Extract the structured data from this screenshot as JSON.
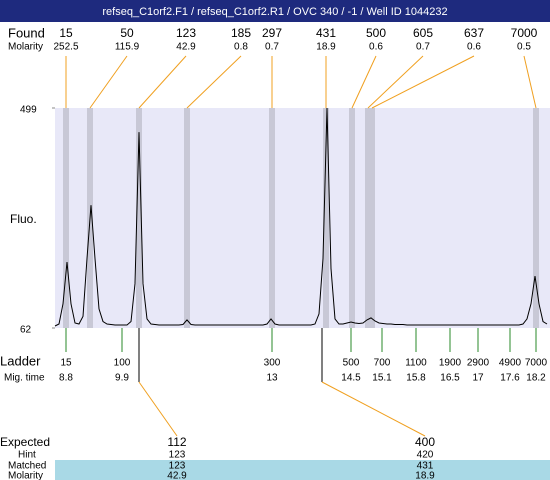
{
  "title": "refseq_C1orf2.F1 / refseq_C1orf2.R1 / OVC 340 / -1 / Well ID 1044232",
  "found": {
    "label": "Found",
    "molarity_label": "Molarity",
    "sizes": [
      15,
      50,
      123,
      185,
      297,
      431,
      500,
      605,
      637,
      7000
    ],
    "molarity": [
      252.5,
      115.9,
      42.9,
      0.8,
      0.7,
      18.9,
      0.6,
      0.7,
      0.6,
      0.5
    ]
  },
  "chart_data": {
    "type": "line",
    "ylabel": "Fluo.",
    "ylim": [
      62,
      499
    ],
    "yticks": [
      62,
      499
    ],
    "color": "#000000",
    "values": [
      66,
      70,
      110,
      193,
      110,
      72,
      70,
      85,
      200,
      306,
      200,
      100,
      75,
      70,
      69,
      68,
      68,
      68,
      68,
      75,
      150,
      451,
      150,
      80,
      70,
      69,
      68,
      68,
      68,
      68,
      68,
      68,
      69,
      78,
      69,
      68,
      68,
      68,
      68,
      68,
      68,
      68,
      68,
      68,
      68,
      68,
      68,
      68,
      68,
      68,
      68,
      68,
      68,
      70,
      80,
      70,
      68,
      68,
      68,
      68,
      68,
      68,
      68,
      68,
      68,
      70,
      90,
      200,
      499,
      180,
      80,
      70,
      70,
      72,
      74,
      72,
      71,
      72,
      78,
      82,
      76,
      72,
      71,
      70,
      70,
      69,
      69,
      69,
      68,
      68,
      68,
      68,
      68,
      68,
      68,
      68,
      68,
      68,
      68,
      68,
      68,
      68,
      68,
      68,
      68,
      68,
      68,
      68,
      68,
      68,
      68,
      68,
      68,
      68,
      68,
      68,
      68,
      70,
      80,
      110,
      165,
      110,
      75,
      70
    ]
  },
  "ladder": {
    "label": "Ladder",
    "mig_time_label": "Mig. time",
    "sizes": [
      15,
      100,
      300,
      500,
      700,
      1100,
      1900,
      2900,
      4900,
      7000
    ],
    "mig_times": [
      8.8,
      9.9,
      13,
      14.5,
      15.1,
      15.8,
      16.5,
      17,
      17.6,
      18.2
    ]
  },
  "expected": {
    "label": "Expected",
    "hint_label": "Hint",
    "matched_label": "Matched",
    "molarity_label": "Molarity",
    "rows": [
      {
        "expected": 112,
        "hint": 123,
        "matched": 123,
        "molarity": 42.9
      },
      {
        "expected": 400,
        "hint": 420,
        "matched": 431,
        "molarity": 18.9
      }
    ]
  }
}
